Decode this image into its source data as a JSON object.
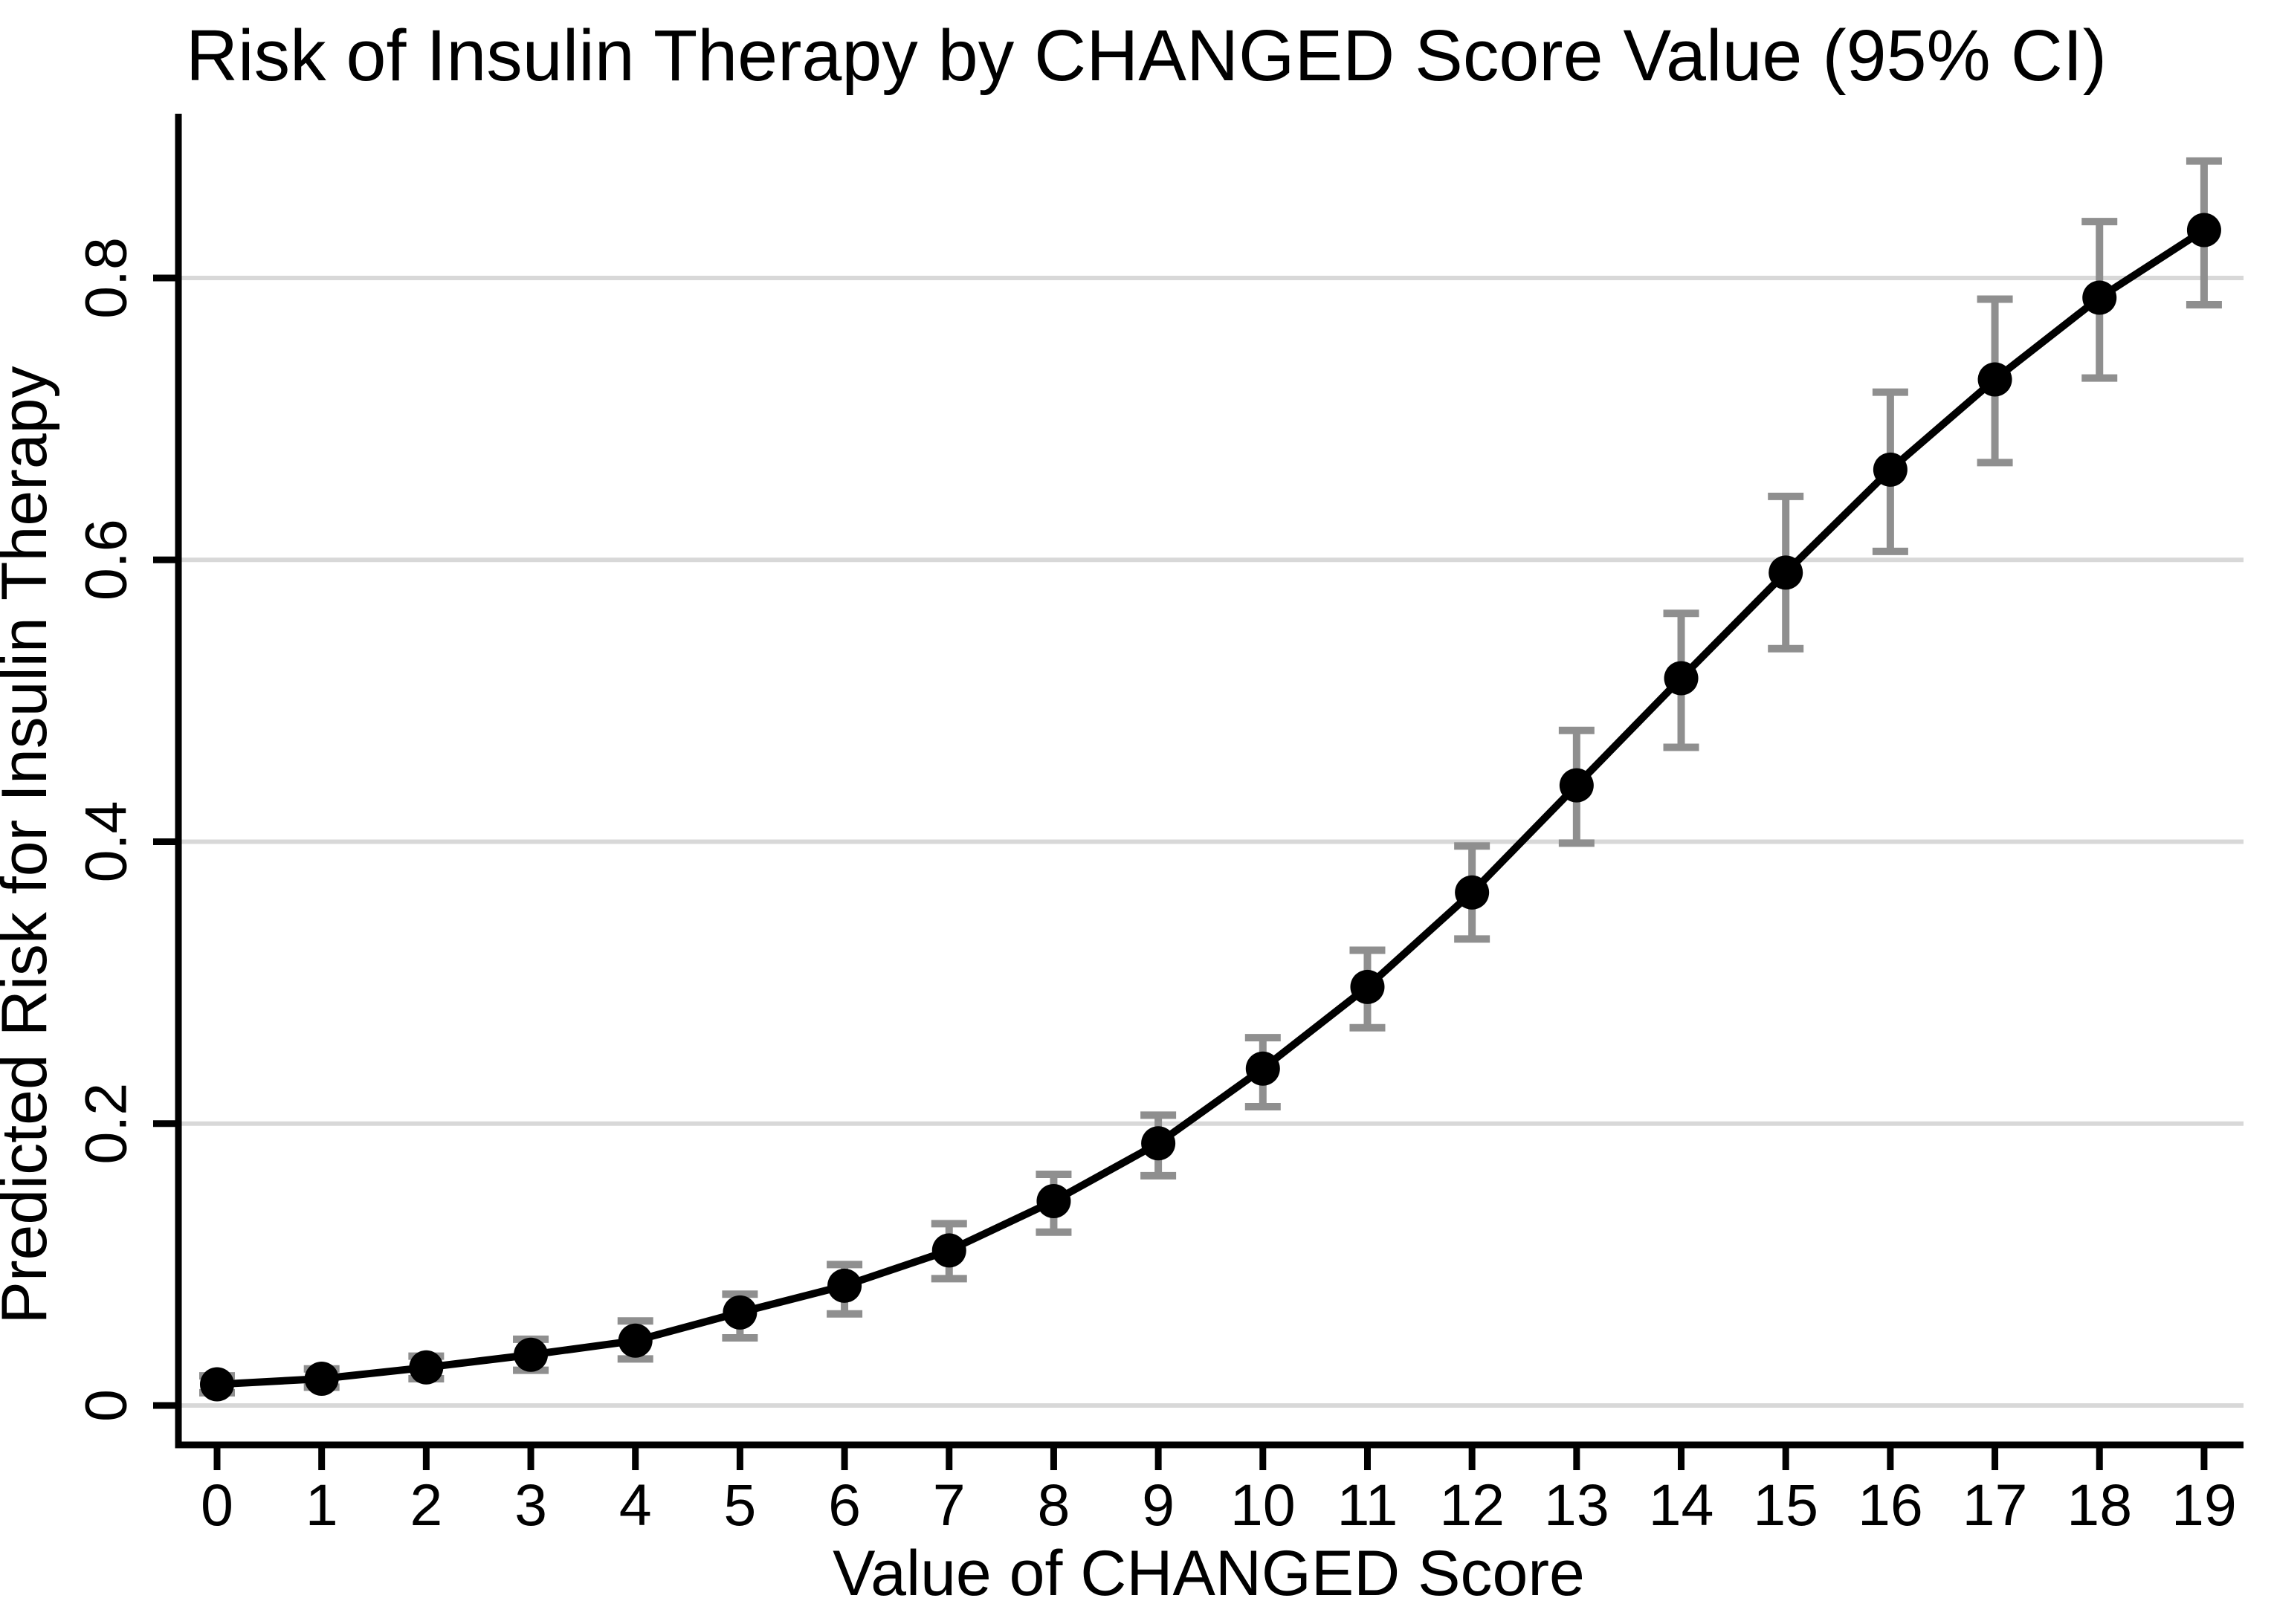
{
  "chart_data": {
    "type": "line",
    "title": "Risk of Insulin Therapy by CHANGED Score Value (95% CI)",
    "xlabel": "Value of CHANGED Score",
    "ylabel": "Predicted Risk for Insulin Therapy",
    "x": [
      0,
      1,
      2,
      3,
      4,
      5,
      6,
      7,
      8,
      9,
      10,
      11,
      12,
      13,
      14,
      15,
      16,
      17,
      18,
      19
    ],
    "series": [
      {
        "name": "Predicted Risk for Insulin Therapy",
        "values": [
          0.015,
          0.019,
          0.027,
          0.036,
          0.046,
          0.066,
          0.085,
          0.11,
          0.145,
          0.186,
          0.239,
          0.297,
          0.364,
          0.44,
          0.516,
          0.591,
          0.664,
          0.728,
          0.786,
          0.834
        ]
      }
    ],
    "ci_low": [
      0.009,
      0.013,
      0.019,
      0.025,
      0.033,
      0.048,
      0.065,
      0.09,
      0.123,
      0.163,
      0.212,
      0.268,
      0.331,
      0.399,
      0.467,
      0.537,
      0.606,
      0.669,
      0.729,
      0.781
    ],
    "ci_high": [
      0.021,
      0.026,
      0.035,
      0.047,
      0.06,
      0.079,
      0.1,
      0.129,
      0.164,
      0.206,
      0.261,
      0.323,
      0.397,
      0.479,
      0.562,
      0.645,
      0.719,
      0.785,
      0.84,
      0.883
    ],
    "ci_level": "95%",
    "yticks": [
      0,
      0.2,
      0.4,
      0.6,
      0.8
    ],
    "ytick_labels": [
      "0",
      "0.2",
      "0.4",
      "0.6",
      "0.8"
    ],
    "xtick_labels": [
      "0",
      "1",
      "2",
      "3",
      "4",
      "5",
      "6",
      "7",
      "8",
      "9",
      "10",
      "11",
      "12",
      "13",
      "14",
      "15",
      "16",
      "17",
      "18",
      "19"
    ],
    "xlim": [
      -0.37,
      19.4
    ],
    "ylim": [
      -0.027,
      0.916
    ],
    "grid": "horizontal",
    "legend": "none",
    "marker_color": "#000000",
    "line_color": "#000000",
    "ci_color": "#8f8f8f",
    "grid_color": "#d8d8d8",
    "axis_color": "#000000"
  }
}
